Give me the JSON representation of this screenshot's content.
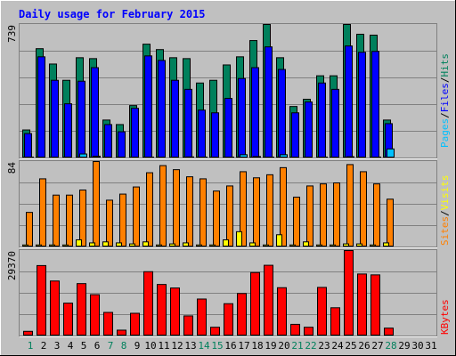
{
  "title": "Daily usage for February 2015",
  "colors": {
    "background": "#c0c0c0",
    "title_text": "#0000ff",
    "hits": "#00805c",
    "files": "#0000ff",
    "pages": "#00c0ff",
    "visits": "#ffff00",
    "sites": "#ff8000",
    "kbytes": "#ff0000",
    "gridline": "#808080",
    "day_weekday": "#000000",
    "day_weekend": "#00805c"
  },
  "chart_data": [
    {
      "type": "bar",
      "panel": "hits-files-pages",
      "y_max_label": "739",
      "ylim": [
        0,
        739
      ],
      "legend": [
        "Pages",
        "Files",
        "Hits"
      ],
      "categories": [
        "1",
        "2",
        "3",
        "4",
        "5",
        "6",
        "7",
        "8",
        "9",
        "10",
        "11",
        "12",
        "13",
        "14",
        "15",
        "16",
        "17",
        "18",
        "19",
        "20",
        "21",
        "22",
        "23",
        "24",
        "25",
        "26",
        "27",
        "28",
        "29",
        "30",
        "31"
      ],
      "series": [
        {
          "name": "Hits",
          "values": [
            155,
            605,
            520,
            430,
            555,
            550,
            210,
            185,
            290,
            630,
            600,
            555,
            550,
            415,
            430,
            515,
            560,
            650,
            740,
            555,
            285,
            325,
            455,
            455,
            745,
            685,
            680,
            210,
            0,
            0,
            0
          ]
        },
        {
          "name": "Files",
          "values": [
            135,
            560,
            430,
            300,
            425,
            500,
            185,
            145,
            275,
            565,
            540,
            430,
            380,
            265,
            250,
            330,
            440,
            500,
            615,
            490,
            250,
            310,
            415,
            380,
            620,
            585,
            590,
            190,
            0,
            0,
            0
          ]
        },
        {
          "name": "Pages",
          "values": [
            5,
            3,
            2,
            3,
            22,
            10,
            3,
            3,
            3,
            5,
            3,
            4,
            6,
            5,
            3,
            5,
            18,
            8,
            5,
            18,
            3,
            4,
            5,
            3,
            7,
            4,
            5,
            50,
            0,
            0,
            0
          ]
        }
      ]
    },
    {
      "type": "bar",
      "panel": "visits-sites",
      "y_max_label": "84",
      "ylim": [
        0,
        84
      ],
      "legend": [
        "Sites",
        "Visits"
      ],
      "categories": [
        "1",
        "2",
        "3",
        "4",
        "5",
        "6",
        "7",
        "8",
        "9",
        "10",
        "11",
        "12",
        "13",
        "14",
        "15",
        "16",
        "17",
        "18",
        "19",
        "20",
        "21",
        "22",
        "23",
        "24",
        "25",
        "26",
        "27",
        "28",
        "29",
        "30",
        "31"
      ],
      "series": [
        {
          "name": "Sites",
          "values": [
            34,
            67,
            51,
            51,
            56,
            85,
            46,
            52,
            59,
            73,
            80,
            76,
            69,
            67,
            55,
            60,
            74,
            68,
            71,
            78,
            49,
            60,
            62,
            63,
            81,
            74,
            62,
            47,
            0,
            0,
            0
          ]
        },
        {
          "name": "Visits",
          "values": [
            2,
            2,
            2,
            2,
            7,
            4,
            5,
            4,
            3,
            5,
            2,
            3,
            4,
            2,
            2,
            7,
            15,
            4,
            2,
            12,
            2,
            5,
            2,
            2,
            3,
            3,
            2,
            4,
            0,
            0,
            0
          ]
        }
      ]
    },
    {
      "type": "bar",
      "panel": "kbytes",
      "y_max_label": "29370",
      "ylim": [
        0,
        29370
      ],
      "legend": [
        "KBytes"
      ],
      "categories": [
        "1",
        "2",
        "3",
        "4",
        "5",
        "6",
        "7",
        "8",
        "9",
        "10",
        "11",
        "12",
        "13",
        "14",
        "15",
        "16",
        "17",
        "18",
        "19",
        "20",
        "21",
        "22",
        "23",
        "24",
        "25",
        "26",
        "27",
        "28",
        "29",
        "30",
        "31"
      ],
      "series": [
        {
          "name": "KBytes",
          "values": [
            1600,
            24200,
            18900,
            11300,
            18000,
            14200,
            8100,
            2000,
            7800,
            22100,
            17700,
            16500,
            6900,
            12700,
            3000,
            11100,
            14600,
            21800,
            24300,
            16600,
            4000,
            3000,
            16700,
            9700,
            29500,
            21300,
            21000,
            2700,
            0,
            0,
            0
          ]
        }
      ]
    }
  ],
  "day_labels": [
    {
      "text": "1",
      "weekend": true
    },
    {
      "text": "2",
      "weekend": false
    },
    {
      "text": "3",
      "weekend": false
    },
    {
      "text": "4",
      "weekend": false
    },
    {
      "text": "5",
      "weekend": false
    },
    {
      "text": "6",
      "weekend": false
    },
    {
      "text": "7",
      "weekend": true
    },
    {
      "text": "8",
      "weekend": true
    },
    {
      "text": "9",
      "weekend": false
    },
    {
      "text": "10",
      "weekend": false
    },
    {
      "text": "11",
      "weekend": false
    },
    {
      "text": "12",
      "weekend": false
    },
    {
      "text": "13",
      "weekend": false
    },
    {
      "text": "14",
      "weekend": true
    },
    {
      "text": "15",
      "weekend": true
    },
    {
      "text": "16",
      "weekend": false
    },
    {
      "text": "17",
      "weekend": false
    },
    {
      "text": "18",
      "weekend": false
    },
    {
      "text": "19",
      "weekend": false
    },
    {
      "text": "20",
      "weekend": false
    },
    {
      "text": "21",
      "weekend": true
    },
    {
      "text": "22",
      "weekend": true
    },
    {
      "text": "23",
      "weekend": false
    },
    {
      "text": "24",
      "weekend": false
    },
    {
      "text": "25",
      "weekend": false
    },
    {
      "text": "26",
      "weekend": false
    },
    {
      "text": "27",
      "weekend": false
    },
    {
      "text": "28",
      "weekend": true
    },
    {
      "text": "29",
      "weekend": false
    },
    {
      "text": "30",
      "weekend": false
    },
    {
      "text": "31",
      "weekend": false
    }
  ]
}
